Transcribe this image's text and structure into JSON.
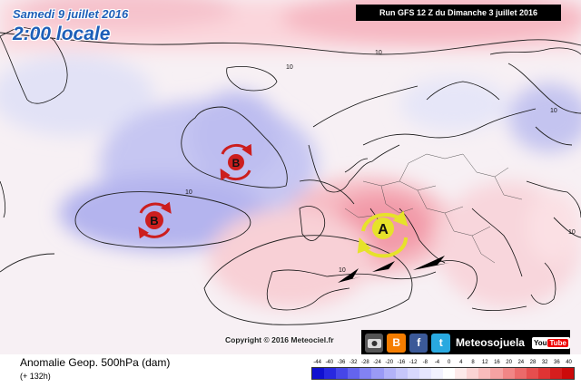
{
  "header": {
    "date": "Samedi 9 juillet 2016",
    "local_time": "2:00 locale",
    "run": "Run GFS 12 Z du Dimanche 3 juillet 2016"
  },
  "map": {
    "contour_labels": [
      "10",
      "10",
      "10",
      "10",
      "10",
      "10"
    ],
    "centers": [
      {
        "id": "low-north",
        "letter": "B",
        "type": "low",
        "color": "#cc1e1e"
      },
      {
        "id": "low-south",
        "letter": "B",
        "type": "low",
        "color": "#cc1e1e"
      },
      {
        "id": "high-alps",
        "letter": "A",
        "type": "high",
        "color": "#e6e22a"
      }
    ],
    "copyright": "Copyright © 2016 Meteociel.fr"
  },
  "branding": {
    "name": "Meteosojuela",
    "icons": [
      "camera-icon",
      "blogger-icon",
      "facebook-icon",
      "twitter-icon",
      "youtube-icon"
    ],
    "youtube_you": "You",
    "youtube_tube": "Tube"
  },
  "legend": {
    "title": "Anomalie Geop. 500hPa (dam)",
    "forecast_hour": "(+ 132h)",
    "ticks": [
      "-44",
      "-40",
      "-36",
      "-32",
      "-28",
      "-24",
      "-20",
      "-16",
      "-12",
      "-8",
      "-4",
      "0",
      "4",
      "8",
      "12",
      "16",
      "20",
      "24",
      "28",
      "32",
      "36",
      "40"
    ],
    "colors": [
      "#1010d0",
      "#2828e0",
      "#4646e8",
      "#6464ee",
      "#8282f2",
      "#9a9af5",
      "#b2b2f8",
      "#c6c6fa",
      "#d8d8fc",
      "#e6e6fd",
      "#f2f2fe",
      "#ffffff",
      "#fdeaea",
      "#fbd4d4",
      "#f8bcbc",
      "#f5a2a2",
      "#f18686",
      "#ec6a6a",
      "#e64e4e",
      "#df3434",
      "#d61e1e",
      "#cc0a0a"
    ]
  }
}
